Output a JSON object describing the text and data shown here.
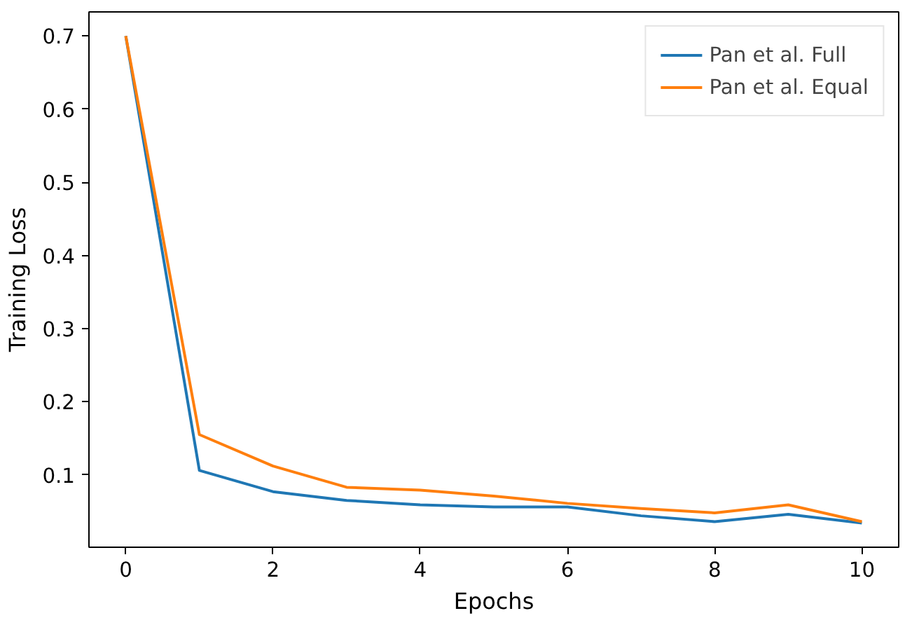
{
  "chart_data": {
    "type": "line",
    "xlabel": "Epochs",
    "ylabel": "Training Loss",
    "x": [
      0,
      1,
      2,
      3,
      4,
      5,
      6,
      7,
      8,
      9,
      10
    ],
    "series": [
      {
        "name": "Pan et al. Full",
        "color": "#1f77b4",
        "values": [
          0.7,
          0.106,
          0.077,
          0.065,
          0.059,
          0.056,
          0.056,
          0.044,
          0.036,
          0.046,
          0.034
        ]
      },
      {
        "name": "Pan et al. Equal",
        "color": "#ff7f0e",
        "values": [
          0.7,
          0.155,
          0.112,
          0.083,
          0.079,
          0.071,
          0.061,
          0.054,
          0.048,
          0.059,
          0.036
        ]
      }
    ],
    "xlim": [
      -0.5,
      10.5
    ],
    "ylim": [
      0.001,
      0.733
    ],
    "xticks": [
      0,
      2,
      4,
      6,
      8,
      10
    ],
    "yticks": [
      0.1,
      0.2,
      0.3,
      0.4,
      0.5,
      0.6,
      0.7
    ],
    "grid": false,
    "legend": "top right",
    "marker": "none",
    "line_style": "solid"
  }
}
